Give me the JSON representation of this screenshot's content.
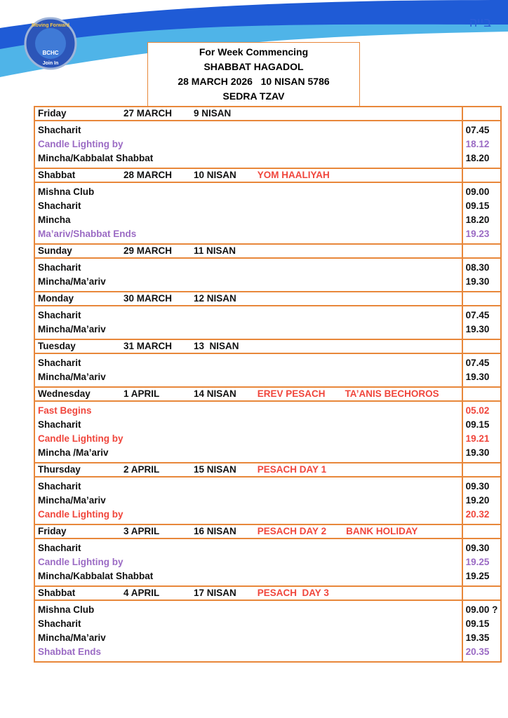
{
  "header": {
    "hebrew": "בייה",
    "logo": {
      "top": "Moving Forward",
      "middle": "BCHC",
      "bottom": "Join In"
    },
    "title": [
      "For Week Commencing",
      "SHABBAT HAGADOL",
      "28 MARCH 2026   10 NISAN 5786",
      "SEDRA TZAV"
    ]
  },
  "days": [
    {
      "day": "Friday",
      "date": "27 MARCH",
      "hebrew_date": "9 NISAN",
      "notes": [],
      "rows": [
        {
          "label": "Shacharit",
          "time": "07.45",
          "color": "#111111"
        },
        {
          "label": "Candle Lighting by",
          "time": "18.12",
          "color": "#9b6bc4"
        },
        {
          "label": "Mincha/Kabbalat Shabbat",
          "time": "18.20",
          "color": "#111111"
        }
      ]
    },
    {
      "day": "Shabbat",
      "date": "28 MARCH",
      "hebrew_date": "10 NISAN",
      "notes": [
        "YOM HAALIYAH"
      ],
      "rows": [
        {
          "label": "Mishna Club",
          "time": "09.00",
          "color": "#111111"
        },
        {
          "label": "Shacharit",
          "time": "09.15",
          "color": "#111111"
        },
        {
          "label": "Mincha",
          "time": "18.20",
          "color": "#111111"
        },
        {
          "label": "Ma’ariv/Shabbat Ends",
          "time": "19.23",
          "color": "#9b6bc4"
        }
      ]
    },
    {
      "day": "Sunday",
      "date": "29 MARCH",
      "hebrew_date": "11 NISAN",
      "notes": [],
      "rows": [
        {
          "label": "Shacharit",
          "time": "08.30",
          "color": "#111111"
        },
        {
          "label": "Mincha/Ma’ariv",
          "time": "19.30",
          "color": "#111111"
        }
      ]
    },
    {
      "day": "Monday",
      "date": "30 MARCH",
      "hebrew_date": "12 NISAN",
      "notes": [],
      "rows": [
        {
          "label": "Shacharit",
          "time": "07.45",
          "color": "#111111"
        },
        {
          "label": "Mincha/Ma’ariv",
          "time": "19.30",
          "color": "#111111"
        }
      ]
    },
    {
      "day": "Tuesday",
      "date": "31 MARCH",
      "hebrew_date": "13  NISAN",
      "notes": [],
      "rows": [
        {
          "label": "Shacharit",
          "time": "07.45",
          "color": "#111111"
        },
        {
          "label": "Mincha/Ma’ariv",
          "time": "19.30",
          "color": "#111111"
        }
      ]
    },
    {
      "day": "Wednesday",
      "date": "1 APRIL",
      "hebrew_date": "14 NISAN",
      "notes": [
        "EREV PESACH",
        "TA’ANIS BECHOROS"
      ],
      "rows": [
        {
          "label": "Fast Begins",
          "time": "05.02",
          "color": "#f0463c"
        },
        {
          "label": "Shacharit",
          "time": "09.15",
          "color": "#111111"
        },
        {
          "label": "Candle Lighting by",
          "time": "19.21",
          "color": "#f0463c"
        },
        {
          "label": "Mincha /Ma’ariv",
          "time": "19.30",
          "color": "#111111"
        }
      ]
    },
    {
      "day": "Thursday",
      "date": "2 APRIL",
      "hebrew_date": "15 NISAN",
      "notes": [
        "PESACH DAY 1"
      ],
      "rows": [
        {
          "label": "Shacharit",
          "time": "09.30",
          "color": "#111111"
        },
        {
          "label": "Mincha/Ma’ariv",
          "time": "19.20",
          "color": "#111111"
        },
        {
          "label": "Candle Lighting by",
          "time": "20.32",
          "color": "#f0463c"
        }
      ]
    },
    {
      "day": "Friday",
      "date": "3 APRIL",
      "hebrew_date": "16 NISAN",
      "notes": [
        "PESACH DAY 2",
        "BANK HOLIDAY"
      ],
      "rows": [
        {
          "label": "Shacharit",
          "time": "09.30",
          "color": "#111111"
        },
        {
          "label": "Candle Lighting by",
          "time": "19.25",
          "color": "#9b6bc4"
        },
        {
          "label": "Mincha/Kabbalat Shabbat",
          "time": "19.25",
          "color": "#111111"
        }
      ]
    },
    {
      "day": "Shabbat",
      "date": "4 APRIL",
      "hebrew_date": "17 NISAN",
      "notes": [
        "PESACH  DAY 3"
      ],
      "rows": [
        {
          "label": "Mishna Club",
          "time": "09.00 ?",
          "color": "#111111"
        },
        {
          "label": "Shacharit",
          "time": "09.15",
          "color": "#111111"
        },
        {
          "label": "Mincha/Ma’ariv",
          "time": "19.35",
          "color": "#111111"
        },
        {
          "label": "Shabbat Ends",
          "time": "20.35",
          "color": "#9b6bc4"
        }
      ]
    }
  ]
}
